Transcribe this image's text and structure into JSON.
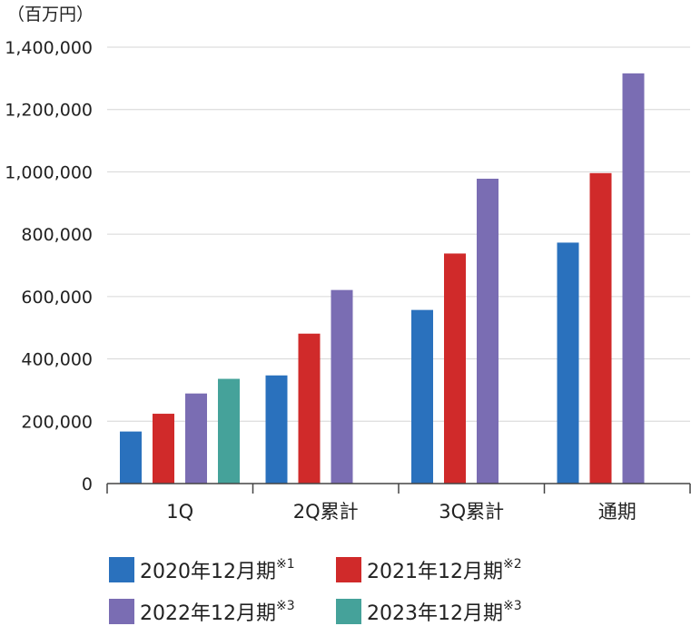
{
  "chart_data": {
    "type": "bar",
    "unit_label": "（百万円）",
    "categories": [
      "1Q",
      "2Q累計",
      "3Q累計",
      "通期"
    ],
    "ylim": [
      0,
      1400000
    ],
    "yticks": [
      "0",
      "200,000",
      "400,000",
      "600,000",
      "800,000",
      "1,000,000",
      "1,200,000",
      "1,400,000"
    ],
    "ytick_values": [
      0,
      200000,
      400000,
      600000,
      800000,
      1000000,
      1200000,
      1400000
    ],
    "grid": true,
    "legend_position": "bottom",
    "series": [
      {
        "name": "2020年12月期",
        "note": "※1",
        "color": "#2a71bd",
        "values": [
          167000,
          347000,
          557000,
          773000
        ]
      },
      {
        "name": "2021年12月期",
        "note": "※2",
        "color": "#d02a2a",
        "values": [
          224000,
          481000,
          738000,
          996000
        ]
      },
      {
        "name": "2022年12月期",
        "note": "※3",
        "color": "#7a6db3",
        "values": [
          289000,
          621000,
          978000,
          1316000
        ]
      },
      {
        "name": "2023年12月期",
        "note": "※3",
        "color": "#45a29a",
        "values": [
          336000,
          null,
          null,
          null
        ]
      }
    ]
  }
}
